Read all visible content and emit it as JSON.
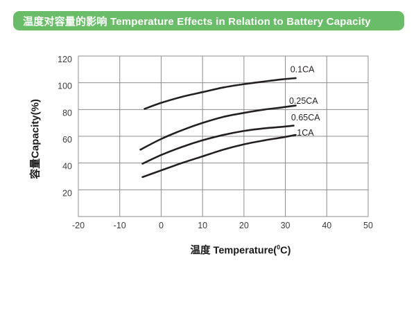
{
  "header": {
    "title": "温度对容量的影响 Temperature Effects in Relation to Battery Capacity",
    "bg_color": "#6abd68",
    "text_color": "#ffffff"
  },
  "chart_data": {
    "type": "line",
    "title": "",
    "xlabel": "温度 Temperature(°C)",
    "xlabel_parts": {
      "main": "温度 Temperature(",
      "sup": "0",
      "tail": "C)"
    },
    "ylabel": "容量Capacity(%)",
    "xlim": [
      -20,
      50
    ],
    "ylim": [
      0,
      120
    ],
    "x_ticks": [
      -20,
      -10,
      0,
      10,
      20,
      30,
      40,
      50
    ],
    "y_ticks": [
      20,
      40,
      60,
      80,
      100,
      120
    ],
    "grid": true,
    "legend_position": "labels-at-curve-ends",
    "line_color": "#231f20",
    "grid_color": "#8c8c8c",
    "tick_color": "#3c3c3c",
    "series": [
      {
        "name": "0.1CA",
        "points": [
          [
            -4,
            80.5
          ],
          [
            0,
            85
          ],
          [
            5,
            89.5
          ],
          [
            10,
            93
          ],
          [
            15,
            96.5
          ],
          [
            20,
            99
          ],
          [
            25,
            101
          ],
          [
            29,
            102.5
          ],
          [
            32.5,
            103.5
          ]
        ],
        "label_pos": [
          31.2,
          110
        ]
      },
      {
        "name": "0.25CA",
        "points": [
          [
            -5,
            50
          ],
          [
            0,
            58
          ],
          [
            5,
            64.5
          ],
          [
            10,
            70
          ],
          [
            15,
            74.5
          ],
          [
            20,
            77.5
          ],
          [
            25,
            80
          ],
          [
            29,
            81.5
          ],
          [
            32.5,
            83
          ]
        ],
        "label_pos": [
          30.9,
          86.5
        ]
      },
      {
        "name": "0.65CA",
        "points": [
          [
            -4.5,
            39.5
          ],
          [
            0,
            46
          ],
          [
            5,
            52
          ],
          [
            10,
            57
          ],
          [
            15,
            61
          ],
          [
            20,
            64
          ],
          [
            25,
            66
          ],
          [
            29,
            67
          ],
          [
            32,
            68
          ]
        ],
        "label_pos": [
          31.4,
          74
        ]
      },
      {
        "name": "1CA",
        "points": [
          [
            -4.5,
            29.5
          ],
          [
            0,
            34.5
          ],
          [
            5,
            40
          ],
          [
            10,
            45
          ],
          [
            15,
            50
          ],
          [
            20,
            54
          ],
          [
            25,
            57
          ],
          [
            29,
            59
          ],
          [
            32.5,
            61
          ]
        ],
        "label_pos": [
          32.8,
          62.5
        ]
      }
    ]
  }
}
